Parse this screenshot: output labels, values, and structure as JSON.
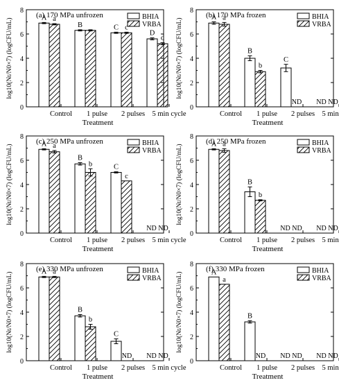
{
  "figure": {
    "colors": {
      "ink": "#000000",
      "background": "#ffffff"
    },
    "legend_labels": [
      "BHIA",
      "VRBA"
    ],
    "nd_text": "ND"
  },
  "chart_data": [
    {
      "type": "bar",
      "title": "(a) 170 MPa  unfrozen",
      "xlabel": "Treatment",
      "ylabel": "log10(Nt/N0×7) (logCFU/mL)",
      "categories": [
        "Control",
        "1 pulse",
        "2 pulses",
        "5 min cycle"
      ],
      "ylim": [
        0,
        8
      ],
      "yticks": [
        "0",
        "2",
        "4",
        "6",
        "8"
      ],
      "legend": "top-right",
      "series": [
        {
          "name": "BHIA",
          "pattern": "open",
          "values": [
            6.9,
            6.3,
            6.1,
            5.6
          ],
          "errors": [
            0.05,
            0.05,
            0.05,
            0.08
          ],
          "letters": [
            "A",
            "B",
            "C",
            "D"
          ]
        },
        {
          "name": "VRBA",
          "pattern": "hatched",
          "values": [
            6.8,
            6.3,
            6.1,
            5.2
          ],
          "errors": [
            0.05,
            0.05,
            0.05,
            0.08
          ],
          "letters": [
            "a",
            "",
            "c",
            "d"
          ]
        }
      ]
    },
    {
      "type": "bar",
      "title": "(b) 170 MPa  frozen",
      "xlabel": "Treatment",
      "ylabel": "log10(Nt/N0×7) (logCFU/mL)",
      "categories": [
        "Control",
        "1 pulse",
        "2 pulses",
        "5 min cycle"
      ],
      "ylim": [
        0,
        8
      ],
      "yticks": [
        "0",
        "2",
        "4",
        "6",
        "8"
      ],
      "legend": "top-right",
      "series": [
        {
          "name": "BHIA",
          "pattern": "open",
          "values": [
            6.9,
            4.0,
            3.2,
            null
          ],
          "errors": [
            0.1,
            0.2,
            0.3,
            null
          ],
          "letters": [
            "A",
            "B",
            "C",
            ""
          ]
        },
        {
          "name": "VRBA",
          "pattern": "hatched",
          "values": [
            6.8,
            2.9,
            null,
            null
          ],
          "errors": [
            0.15,
            0.1,
            null,
            null
          ],
          "letters": [
            "a",
            "b",
            "",
            ""
          ]
        }
      ],
      "nd_labels": [
        "",
        "",
        "ND",
        "ND ND"
      ]
    },
    {
      "type": "bar",
      "title": "(c) 250 MPa  unfrozen",
      "xlabel": "Treatment",
      "ylabel": "log10(Nt/N0×7) (logCFU/mL)",
      "categories": [
        "Control",
        "1 pulse",
        "2 pulses",
        "5 min cycle"
      ],
      "ylim": [
        0,
        8
      ],
      "yticks": [
        "0",
        "2",
        "4",
        "6",
        "8"
      ],
      "legend": "top-right",
      "series": [
        {
          "name": "BHIA",
          "pattern": "open",
          "values": [
            6.9,
            5.7,
            5.0,
            null
          ],
          "errors": [
            0.05,
            0.1,
            0.05,
            null
          ],
          "letters": [
            "A",
            "B",
            "C",
            ""
          ]
        },
        {
          "name": "VRBA",
          "pattern": "hatched",
          "values": [
            6.7,
            5.0,
            4.3,
            null
          ],
          "errors": [
            0.1,
            0.3,
            null,
            null
          ],
          "letters": [
            "a",
            "b",
            "c",
            ""
          ]
        }
      ],
      "nd_labels": [
        "",
        "",
        "",
        "ND ND"
      ]
    },
    {
      "type": "bar",
      "title": "(d) 250 MPa  frozen",
      "xlabel": "Treatment",
      "ylabel": "log10(Nt/N0×7) (logCFU/mL)",
      "categories": [
        "Control",
        "1 pulse",
        "2 pulses",
        "5 min cycle"
      ],
      "ylim": [
        0,
        8
      ],
      "yticks": [
        "0",
        "2",
        "4",
        "6",
        "8"
      ],
      "legend": "top-right",
      "series": [
        {
          "name": "BHIA",
          "pattern": "open",
          "values": [
            6.9,
            3.4,
            null,
            null
          ],
          "errors": [
            0.05,
            0.4,
            null,
            null
          ],
          "letters": [
            "A",
            "B",
            "",
            ""
          ]
        },
        {
          "name": "VRBA",
          "pattern": "hatched",
          "values": [
            6.8,
            2.7,
            null,
            null
          ],
          "errors": [
            0.15,
            0.05,
            null,
            null
          ],
          "letters": [
            "a",
            "b",
            "",
            ""
          ]
        }
      ],
      "nd_labels": [
        "",
        "",
        "ND ND",
        "ND ND"
      ]
    },
    {
      "type": "bar",
      "title": "(e) 330 MPa  unfrozen",
      "xlabel": "Treatment",
      "ylabel": "log10(Nt/N0×7) (logCFU/mL)",
      "categories": [
        "Control",
        "1 pulse",
        "2 pulses",
        "5 min cycle"
      ],
      "ylim": [
        0,
        8
      ],
      "yticks": [
        "0",
        "2",
        "4",
        "6",
        "8"
      ],
      "legend": "top-right",
      "series": [
        {
          "name": "BHIA",
          "pattern": "open",
          "values": [
            6.9,
            3.7,
            1.6,
            null
          ],
          "errors": [
            0.05,
            0.1,
            0.2,
            null
          ],
          "letters": [
            "A",
            "B",
            "C",
            ""
          ]
        },
        {
          "name": "VRBA",
          "pattern": "hatched",
          "values": [
            6.9,
            2.8,
            null,
            null
          ],
          "errors": [
            0.05,
            0.2,
            null,
            null
          ],
          "letters": [
            "a",
            "b",
            "",
            ""
          ]
        }
      ],
      "nd_labels": [
        "",
        "",
        "ND",
        "ND ND"
      ]
    },
    {
      "type": "bar",
      "title": "(f) 330 MPa  frozen",
      "xlabel": "Treatment",
      "ylabel": "log10(Nt/N0×7) (logCFU/mL)",
      "categories": [
        "Control",
        "1 pulse",
        "2 pulses",
        "5 min cycle"
      ],
      "ylim": [
        0,
        8
      ],
      "yticks": [
        "0",
        "2",
        "4",
        "6",
        "8"
      ],
      "legend": "top-right",
      "series": [
        {
          "name": "BHIA",
          "pattern": "open",
          "values": [
            6.9,
            3.2,
            null,
            null
          ],
          "errors": [
            0.0,
            0.1,
            null,
            null
          ],
          "letters": [
            "A",
            "B",
            "",
            ""
          ]
        },
        {
          "name": "VRBA",
          "pattern": "hatched",
          "values": [
            6.3,
            null,
            null,
            null
          ],
          "errors": [
            0.0,
            null,
            null,
            null
          ],
          "letters": [
            "a",
            "",
            "",
            ""
          ]
        }
      ],
      "nd_labels": [
        "",
        "ND",
        "ND ND",
        "ND ND"
      ]
    }
  ]
}
